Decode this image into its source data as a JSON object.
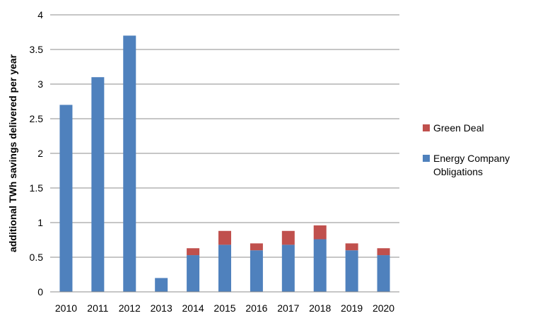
{
  "chart_data": {
    "type": "bar",
    "stacked": true,
    "categories": [
      "2010",
      "2011",
      "2012",
      "2013",
      "2014",
      "2015",
      "2016",
      "2017",
      "2018",
      "2019",
      "2020"
    ],
    "series": [
      {
        "name": "Energy Company Obligations",
        "color": "#4F81BD",
        "values": [
          2.7,
          3.1,
          3.7,
          0.2,
          0.53,
          0.68,
          0.6,
          0.68,
          0.76,
          0.6,
          0.53
        ]
      },
      {
        "name": "Green Deal",
        "color": "#C0504D",
        "values": [
          0,
          0,
          0,
          0,
          0.1,
          0.2,
          0.1,
          0.2,
          0.2,
          0.1,
          0.1
        ]
      }
    ],
    "ylabel": "additional TWh savings delivered per year",
    "ylim": [
      0,
      4
    ],
    "yticks": [
      "0",
      "0.5",
      "1",
      "1.5",
      "2",
      "2.5",
      "3",
      "3.5",
      "4"
    ],
    "grid": true,
    "legend_position": "right"
  }
}
